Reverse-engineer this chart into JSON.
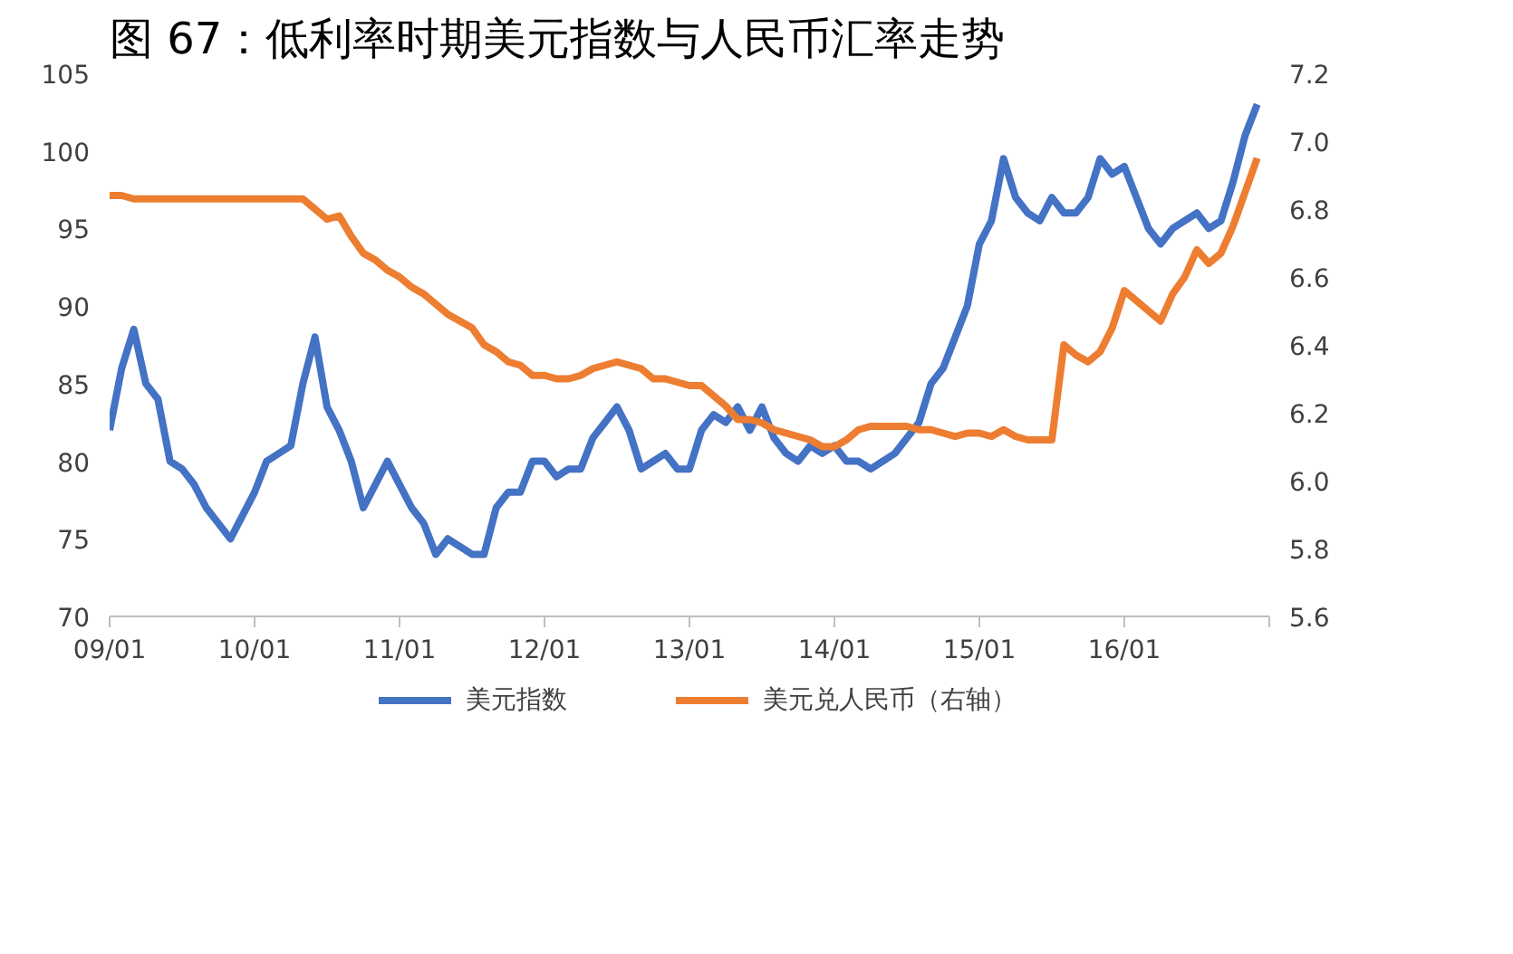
{
  "chart_data": {
    "type": "line",
    "title": "图 67：低利率时期美元指数与人民币汇率走势",
    "categories": [
      "09/01",
      null,
      null,
      null,
      null,
      null,
      null,
      null,
      null,
      null,
      null,
      null,
      "10/01",
      null,
      null,
      null,
      null,
      null,
      null,
      null,
      null,
      null,
      null,
      null,
      "11/01",
      null,
      null,
      null,
      null,
      null,
      null,
      null,
      null,
      null,
      null,
      null,
      "12/01",
      null,
      null,
      null,
      null,
      null,
      null,
      null,
      null,
      null,
      null,
      null,
      "13/01",
      null,
      null,
      null,
      null,
      null,
      null,
      null,
      null,
      null,
      null,
      null,
      "14/01",
      null,
      null,
      null,
      null,
      null,
      null,
      null,
      null,
      null,
      null,
      null,
      "15/01",
      null,
      null,
      null,
      null,
      null,
      null,
      null,
      null,
      null,
      null,
      null,
      "16/01",
      null,
      null,
      null,
      null,
      null,
      null,
      null,
      null,
      null,
      null,
      null
    ],
    "series": [
      {
        "name": "美元指数",
        "color": "#4472c4",
        "values": [
          82,
          86,
          88.5,
          85,
          84,
          80,
          79.5,
          78.5,
          77,
          76,
          75,
          76.5,
          78,
          80,
          80.5,
          81,
          85,
          88,
          83.5,
          82,
          80,
          77,
          78.5,
          80,
          78.5,
          77,
          76,
          74,
          75,
          74.5,
          74,
          74,
          77,
          78,
          78,
          80,
          80,
          79,
          79.5,
          79.5,
          81.5,
          82.5,
          83.5,
          82,
          79.5,
          80,
          80.5,
          79.5,
          79.5,
          82,
          83,
          82.5,
          83.5,
          82,
          83.5,
          81.5,
          80.5,
          80,
          81,
          80.5,
          81,
          80,
          80,
          79.5,
          80,
          80.5,
          81.5,
          82.5,
          85,
          86,
          88,
          90,
          94,
          95.5,
          99.5,
          97,
          96,
          95.5,
          97,
          96,
          96,
          97,
          99.5,
          98.5,
          99,
          97,
          95,
          94,
          95,
          95.5,
          96,
          95,
          95.5,
          98,
          101,
          103
        ]
      },
      {
        "name": "美元兑人民币（右轴）",
        "color": "#ed7d31",
        "axis": "y2",
        "values": [
          6.84,
          6.84,
          6.83,
          6.83,
          6.83,
          6.83,
          6.83,
          6.83,
          6.83,
          6.83,
          6.83,
          6.83,
          6.83,
          6.83,
          6.83,
          6.83,
          6.83,
          6.8,
          6.77,
          6.78,
          6.72,
          6.67,
          6.65,
          6.62,
          6.6,
          6.57,
          6.55,
          6.52,
          6.49,
          6.47,
          6.45,
          6.4,
          6.38,
          6.35,
          6.34,
          6.31,
          6.31,
          6.3,
          6.3,
          6.31,
          6.33,
          6.34,
          6.35,
          6.34,
          6.33,
          6.3,
          6.3,
          6.29,
          6.28,
          6.28,
          6.25,
          6.22,
          6.18,
          6.18,
          6.17,
          6.15,
          6.14,
          6.13,
          6.12,
          6.1,
          6.1,
          6.12,
          6.15,
          6.16,
          6.16,
          6.16,
          6.16,
          6.15,
          6.15,
          6.14,
          6.13,
          6.14,
          6.14,
          6.13,
          6.15,
          6.13,
          6.12,
          6.12,
          6.12,
          6.4,
          6.37,
          6.35,
          6.38,
          6.45,
          6.56,
          6.53,
          6.5,
          6.47,
          6.55,
          6.6,
          6.68,
          6.64,
          6.67,
          6.75,
          6.85,
          6.95
        ]
      }
    ],
    "ylim": [
      70,
      105
    ],
    "yticks": [
      70,
      75,
      80,
      85,
      90,
      95,
      100,
      105
    ],
    "y2lim": [
      5.6,
      7.2
    ],
    "y2ticks": [
      {
        "value": 5.6,
        "label": "5.6"
      },
      {
        "value": 5.8,
        "label": "5.8"
      },
      {
        "value": 6.0,
        "label": "6.0"
      },
      {
        "value": 6.2,
        "label": "6.2"
      },
      {
        "value": 6.4,
        "label": "6.4"
      },
      {
        "value": 6.6,
        "label": "6.6"
      },
      {
        "value": 6.8,
        "label": "6.8"
      },
      {
        "value": 7.0,
        "label": "7.0"
      },
      {
        "value": 7.2,
        "label": "7.2"
      }
    ],
    "grid": false,
    "legend": "bottom",
    "marker": "none",
    "line_style": "solid"
  }
}
